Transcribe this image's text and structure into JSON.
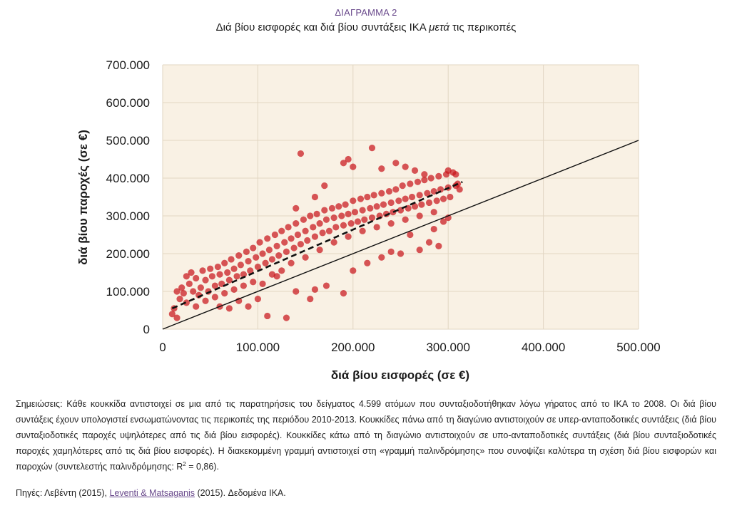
{
  "figure": {
    "label": "ΔΙΑΓΡΑΜΜΑ 2",
    "title_before": "Διά βίου εισφορές και διά βίου συντάξεις ΙΚΑ ",
    "title_italic": "μετά",
    "title_after": " τις περικοπές"
  },
  "colors": {
    "plot_bg": "#f9f1e4",
    "grid": "#e2d6c2",
    "points": "#c8161c",
    "regression_line": "#111111",
    "diagonal_line": "#111111",
    "accent": "#6a4a8c"
  },
  "chart_data": {
    "type": "scatter",
    "title": "Διά βίου εισφορές και διά βίου συντάξεις ΙΚΑ μετά τις περικοπές",
    "xlabel": "διά βίου εισφορές (σε €)",
    "ylabel": "διά βίου παροχές (σε €)",
    "xlim": [
      0,
      500000
    ],
    "ylim": [
      0,
      700000
    ],
    "x_ticks": [
      0,
      100000,
      200000,
      300000,
      400000,
      500000
    ],
    "x_tick_labels": [
      "0",
      "100.000",
      "200.000",
      "300.000",
      "400.000",
      "500.000"
    ],
    "y_ticks": [
      0,
      100000,
      200000,
      300000,
      400000,
      500000,
      600000,
      700000
    ],
    "y_tick_labels": [
      "0",
      "100.000",
      "200.000",
      "300.000",
      "400.000",
      "500.000",
      "600.000",
      "700.000"
    ],
    "grid": true,
    "n_observations": 4599,
    "r_squared": 0.86,
    "regression_line": {
      "style": "dashed",
      "x": [
        10000,
        315000
      ],
      "y": [
        55000,
        390000
      ]
    },
    "diagonal_line": {
      "style": "solid",
      "x": [
        0,
        500000
      ],
      "y": [
        0,
        500000
      ]
    },
    "points": [
      [
        10000,
        40000
      ],
      [
        15000,
        30000
      ],
      [
        12000,
        55000
      ],
      [
        15000,
        100000
      ],
      [
        18000,
        80000
      ],
      [
        20000,
        110000
      ],
      [
        22000,
        95000
      ],
      [
        25000,
        140000
      ],
      [
        28000,
        120000
      ],
      [
        30000,
        150000
      ],
      [
        32000,
        100000
      ],
      [
        35000,
        135000
      ],
      [
        38000,
        90000
      ],
      [
        40000,
        110000
      ],
      [
        42000,
        155000
      ],
      [
        45000,
        130000
      ],
      [
        48000,
        100000
      ],
      [
        50000,
        160000
      ],
      [
        52000,
        140000
      ],
      [
        55000,
        115000
      ],
      [
        58000,
        165000
      ],
      [
        60000,
        145000
      ],
      [
        62000,
        120000
      ],
      [
        65000,
        175000
      ],
      [
        68000,
        150000
      ],
      [
        70000,
        130000
      ],
      [
        72000,
        185000
      ],
      [
        75000,
        160000
      ],
      [
        78000,
        140000
      ],
      [
        80000,
        195000
      ],
      [
        82000,
        170000
      ],
      [
        85000,
        145000
      ],
      [
        88000,
        205000
      ],
      [
        90000,
        180000
      ],
      [
        92000,
        155000
      ],
      [
        95000,
        215000
      ],
      [
        98000,
        190000
      ],
      [
        100000,
        165000
      ],
      [
        102000,
        230000
      ],
      [
        105000,
        200000
      ],
      [
        108000,
        175000
      ],
      [
        110000,
        240000
      ],
      [
        112000,
        210000
      ],
      [
        115000,
        185000
      ],
      [
        118000,
        250000
      ],
      [
        120000,
        220000
      ],
      [
        122000,
        195000
      ],
      [
        125000,
        260000
      ],
      [
        128000,
        230000
      ],
      [
        130000,
        205000
      ],
      [
        132000,
        270000
      ],
      [
        135000,
        240000
      ],
      [
        138000,
        215000
      ],
      [
        140000,
        280000
      ],
      [
        142000,
        250000
      ],
      [
        145000,
        225000
      ],
      [
        148000,
        290000
      ],
      [
        150000,
        260000
      ],
      [
        152000,
        235000
      ],
      [
        155000,
        300000
      ],
      [
        158000,
        270000
      ],
      [
        160000,
        245000
      ],
      [
        162000,
        305000
      ],
      [
        165000,
        280000
      ],
      [
        168000,
        255000
      ],
      [
        170000,
        315000
      ],
      [
        172000,
        290000
      ],
      [
        175000,
        260000
      ],
      [
        178000,
        320000
      ],
      [
        180000,
        295000
      ],
      [
        182000,
        270000
      ],
      [
        185000,
        325000
      ],
      [
        188000,
        300000
      ],
      [
        190000,
        275000
      ],
      [
        192000,
        330000
      ],
      [
        195000,
        305000
      ],
      [
        198000,
        280000
      ],
      [
        200000,
        340000
      ],
      [
        202000,
        310000
      ],
      [
        205000,
        285000
      ],
      [
        208000,
        345000
      ],
      [
        210000,
        315000
      ],
      [
        212000,
        290000
      ],
      [
        215000,
        350000
      ],
      [
        218000,
        320000
      ],
      [
        220000,
        295000
      ],
      [
        222000,
        355000
      ],
      [
        225000,
        325000
      ],
      [
        228000,
        300000
      ],
      [
        230000,
        360000
      ],
      [
        232000,
        330000
      ],
      [
        235000,
        305000
      ],
      [
        238000,
        365000
      ],
      [
        240000,
        335000
      ],
      [
        242000,
        310000
      ],
      [
        245000,
        370000
      ],
      [
        248000,
        340000
      ],
      [
        250000,
        315000
      ],
      [
        252000,
        380000
      ],
      [
        255000,
        345000
      ],
      [
        258000,
        320000
      ],
      [
        260000,
        385000
      ],
      [
        262000,
        350000
      ],
      [
        265000,
        325000
      ],
      [
        268000,
        390000
      ],
      [
        270000,
        355000
      ],
      [
        272000,
        330000
      ],
      [
        275000,
        395000
      ],
      [
        278000,
        360000
      ],
      [
        280000,
        335000
      ],
      [
        282000,
        400000
      ],
      [
        285000,
        365000
      ],
      [
        288000,
        340000
      ],
      [
        290000,
        405000
      ],
      [
        292000,
        370000
      ],
      [
        295000,
        345000
      ],
      [
        298000,
        410000
      ],
      [
        300000,
        375000
      ],
      [
        302000,
        350000
      ],
      [
        305000,
        415000
      ],
      [
        308000,
        380000
      ],
      [
        310000,
        385000
      ],
      [
        312000,
        370000
      ],
      [
        120000,
        140000
      ],
      [
        135000,
        175000
      ],
      [
        150000,
        190000
      ],
      [
        165000,
        210000
      ],
      [
        180000,
        230000
      ],
      [
        195000,
        245000
      ],
      [
        210000,
        260000
      ],
      [
        225000,
        270000
      ],
      [
        240000,
        280000
      ],
      [
        255000,
        290000
      ],
      [
        270000,
        300000
      ],
      [
        285000,
        310000
      ],
      [
        60000,
        60000
      ],
      [
        70000,
        55000
      ],
      [
        80000,
        75000
      ],
      [
        90000,
        60000
      ],
      [
        100000,
        80000
      ],
      [
        105000,
        120000
      ],
      [
        110000,
        35000
      ],
      [
        130000,
        30000
      ],
      [
        140000,
        100000
      ],
      [
        155000,
        80000
      ],
      [
        160000,
        105000
      ],
      [
        172000,
        115000
      ],
      [
        190000,
        95000
      ],
      [
        200000,
        155000
      ],
      [
        215000,
        175000
      ],
      [
        230000,
        190000
      ],
      [
        240000,
        205000
      ],
      [
        250000,
        200000
      ],
      [
        260000,
        250000
      ],
      [
        270000,
        210000
      ],
      [
        280000,
        230000
      ],
      [
        285000,
        265000
      ],
      [
        290000,
        220000
      ],
      [
        295000,
        285000
      ],
      [
        300000,
        295000
      ],
      [
        145000,
        465000
      ],
      [
        190000,
        440000
      ],
      [
        195000,
        450000
      ],
      [
        200000,
        430000
      ],
      [
        220000,
        480000
      ],
      [
        160000,
        350000
      ],
      [
        170000,
        380000
      ],
      [
        140000,
        320000
      ],
      [
        230000,
        425000
      ],
      [
        245000,
        440000
      ],
      [
        255000,
        430000
      ],
      [
        265000,
        420000
      ],
      [
        275000,
        410000
      ],
      [
        300000,
        420000
      ],
      [
        308000,
        410000
      ],
      [
        25000,
        70000
      ],
      [
        35000,
        60000
      ],
      [
        45000,
        75000
      ],
      [
        55000,
        85000
      ],
      [
        65000,
        95000
      ],
      [
        75000,
        105000
      ],
      [
        85000,
        115000
      ],
      [
        95000,
        125000
      ],
      [
        115000,
        145000
      ],
      [
        125000,
        155000
      ]
    ]
  },
  "notes": {
    "prefix": "Σημειώσεις: Κάθε κουκκίδα αντιστοιχεί σε μια από τις παρατηρήσεις του δείγματος 4.599 ατόμων που συνταξιοδοτήθηκαν λόγω γήρατος από το ΙΚΑ το 2008. Οι διά βίου συντάξεις έχουν υπολογιστεί ενσωματώνοντας τις περικοπές της περιόδου 2010-2013. Κουκκίδες πάνω από τη διαγώνιο αντιστοιχούν σε υπερ-ανταποδοτικές συντάξεις (διά βίου συνταξιοδοτικές παροχές υψηλότερες από τις διά βίου εισφορές). Κουκκίδες κάτω από τη διαγώνιο αντιστοιχούν σε υπο-ανταποδοτικές συντάξεις (διά βίου συνταξιοδοτικές παροχές χαμηλότερες από τις διά βίου εισφορές). Η διακεκομμένη γραμμή αντιστοιχεί στη «γραμμή παλινδρόμησης» που συνοψίζει καλύτερα τη σχέση διά βίου εισφορών και παροχών (συντελεστής παλινδρόμησης: R",
    "sup": "2",
    "suffix": " = 0,86)."
  },
  "sources": {
    "prefix": "Πηγές: Λεβέντη (2015), ",
    "link_label": "Leventi & Matsaganis",
    "suffix": " (2015). Δεδομένα ΙΚΑ."
  }
}
